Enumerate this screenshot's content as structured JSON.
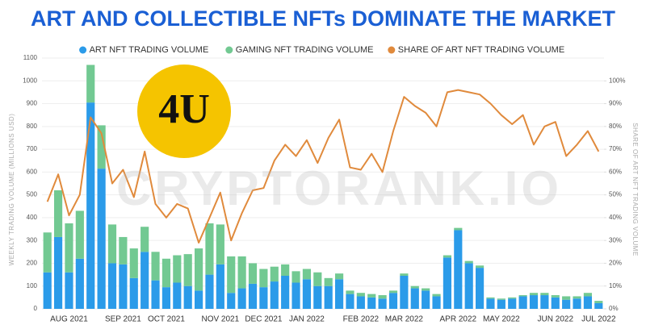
{
  "chart_data": {
    "type": "bar",
    "title": "ART AND COLLECTIBLE NFTs DOMINATE THE MARKET",
    "watermark": "CRYPTORANK.IO",
    "logo": "4U",
    "ylabel": "WEEKLY TRADING VOLUME (MILLIONS USD)",
    "y2label": "SHARE OF ART NFT TRADING VOLUME",
    "stacked": true,
    "grid": true,
    "legend": "top",
    "categories": [
      null,
      null,
      "AUG 2021",
      null,
      null,
      null,
      null,
      "SEP 2021",
      null,
      null,
      null,
      "OCT 2021",
      null,
      null,
      null,
      null,
      "NOV 2021",
      null,
      null,
      null,
      "DEC 2021",
      null,
      null,
      null,
      "JAN 2022",
      null,
      null,
      null,
      null,
      "FEB 2022",
      null,
      null,
      null,
      "MAR 2022",
      null,
      null,
      null,
      null,
      "APR 2022",
      null,
      null,
      null,
      "MAY 2022",
      null,
      null,
      null,
      null,
      "JUN 2022",
      null,
      null,
      null,
      "JUL 2022"
    ],
    "series": [
      {
        "name": "ART NFT TRADING VOLUME",
        "color": "#2b9be9",
        "type": "bar",
        "values": [
          160,
          315,
          160,
          220,
          905,
          615,
          200,
          195,
          135,
          250,
          125,
          95,
          115,
          100,
          80,
          150,
          195,
          70,
          90,
          110,
          95,
          120,
          145,
          115,
          130,
          100,
          100,
          130,
          65,
          55,
          50,
          45,
          70,
          145,
          90,
          80,
          55,
          225,
          345,
          200,
          180,
          45,
          40,
          45,
          55,
          60,
          60,
          50,
          40,
          45,
          55,
          25
        ]
      },
      {
        "name": "GAMING NFT TRADING VOLUME",
        "color": "#72c992",
        "type": "bar",
        "values": [
          175,
          205,
          215,
          210,
          165,
          190,
          170,
          120,
          130,
          110,
          125,
          125,
          120,
          140,
          185,
          225,
          175,
          160,
          140,
          90,
          80,
          65,
          50,
          50,
          45,
          60,
          35,
          25,
          15,
          15,
          15,
          15,
          10,
          10,
          10,
          10,
          10,
          10,
          10,
          10,
          10,
          5,
          5,
          5,
          5,
          10,
          10,
          10,
          15,
          10,
          15,
          10
        ]
      },
      {
        "name": "SHARE OF ART NFT TRADING VOLUME",
        "color": "#e08a3c",
        "type": "line",
        "axis": "y2",
        "values": [
          47,
          59,
          41,
          50,
          84,
          77,
          55,
          61,
          49,
          69,
          46,
          40,
          46,
          44,
          29,
          40,
          51,
          30,
          42,
          52,
          53,
          65,
          72,
          67,
          74,
          64,
          75,
          83,
          62,
          61,
          68,
          60,
          78,
          93,
          89,
          86,
          80,
          95,
          96,
          95,
          94,
          90,
          85,
          81,
          85,
          72,
          80,
          82,
          67,
          72,
          78,
          69
        ]
      }
    ],
    "ylim": [
      0,
      1100
    ],
    "yticks": [
      0,
      100,
      200,
      300,
      400,
      500,
      600,
      700,
      800,
      900,
      1000,
      1100
    ],
    "y2lim": [
      0,
      110
    ],
    "y2ticks": [
      {
        "value": 0,
        "label": "0%"
      },
      {
        "value": 10,
        "label": "10%"
      },
      {
        "value": 20,
        "label": "20%"
      },
      {
        "value": 30,
        "label": "30%"
      },
      {
        "value": 40,
        "label": "40%"
      },
      {
        "value": 50,
        "label": "50%"
      },
      {
        "value": 60,
        "label": "60%"
      },
      {
        "value": 70,
        "label": "70%"
      },
      {
        "value": 80,
        "label": "80%"
      },
      {
        "value": 90,
        "label": "90%"
      },
      {
        "value": 100,
        "label": "100%"
      }
    ]
  }
}
